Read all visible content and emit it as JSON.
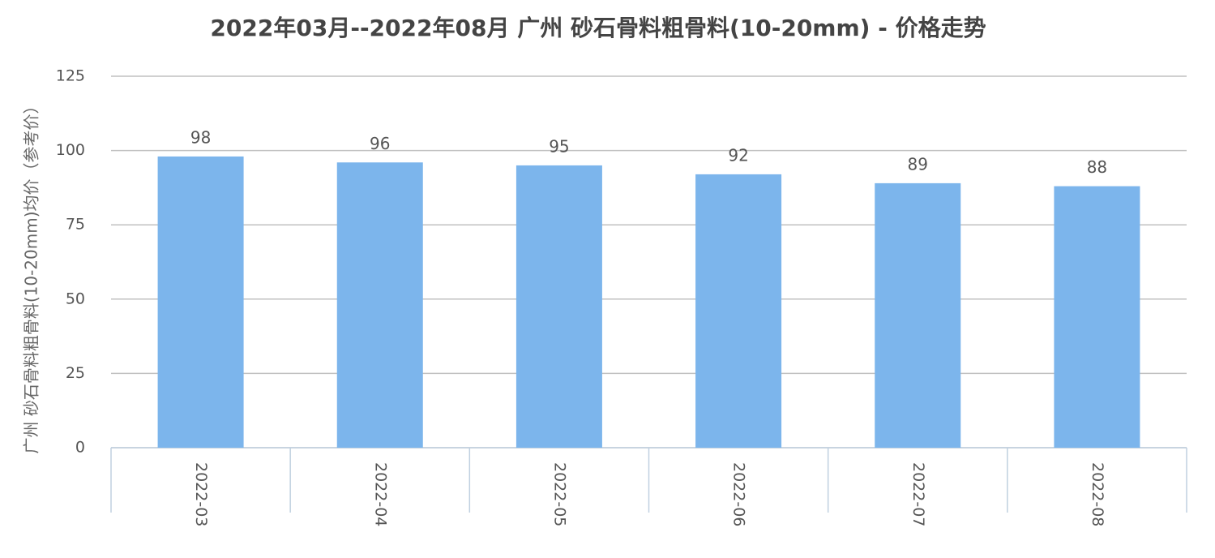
{
  "chart_data": {
    "type": "bar",
    "title": "2022年03月--2022年08月 广州 砂石骨料粗骨料(10-20mm) - 价格走势",
    "y_label": "广州 砂石骨料粗骨料(10-20mm)均价（参考价）",
    "categories": [
      "2022-03",
      "2022-04",
      "2022-05",
      "2022-06",
      "2022-07",
      "2022-08"
    ],
    "values": [
      98,
      96,
      95,
      92,
      89,
      88
    ],
    "color": "#7cb5ec",
    "ylim": [
      0,
      125
    ],
    "yticks": [
      0,
      25,
      50,
      75,
      100,
      125
    ],
    "grid": true
  }
}
